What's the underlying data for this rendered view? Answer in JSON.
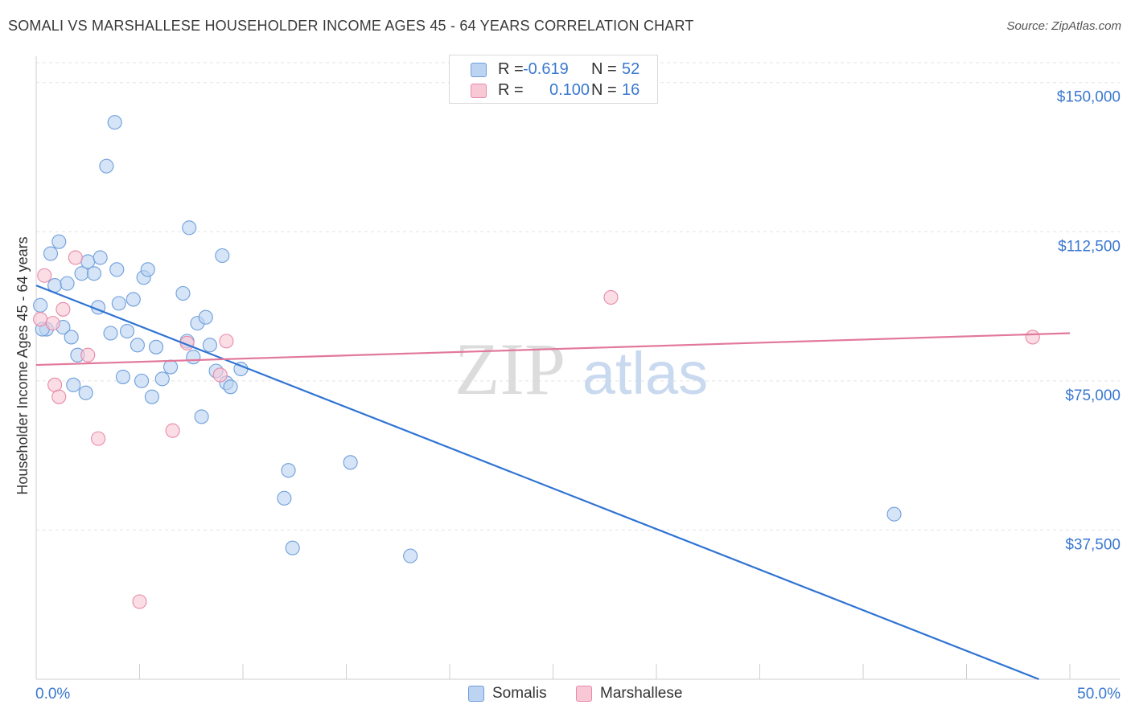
{
  "header": {
    "title": "SOMALI VS MARSHALLESE HOUSEHOLDER INCOME AGES 45 - 64 YEARS CORRELATION CHART",
    "source": "Source: ZipAtlas.com"
  },
  "legend_top": {
    "somalis": {
      "r_label": "R =",
      "r_value": "-0.619",
      "n_label": "N =",
      "n_value": "52"
    },
    "marshallese": {
      "r_label": "R =",
      "r_value": "0.100",
      "n_label": "N =",
      "n_value": "16"
    }
  },
  "legend_bottom": {
    "somalis": "Somalis",
    "marshallese": "Marshallese"
  },
  "watermark": {
    "part1": "ZIP",
    "part2": "atlas"
  },
  "colors": {
    "somalis_fill": "#bcd3f1",
    "somalis_stroke": "#6f9fdc",
    "somalis_line": "#2f74d3",
    "marshallese_fill": "#f8c8d6",
    "marshallese_stroke": "#e88aa8",
    "marshallese_line": "#e2789a",
    "axis_label": "#3a78d0",
    "grid": "#e3e3e3"
  },
  "chart_data": {
    "type": "scatter",
    "title": "SOMALI VS MARSHALLESE HOUSEHOLDER INCOME AGES 45 - 64 YEARS CORRELATION CHART",
    "xlabel": "",
    "ylabel": "Householder Income Ages 45 - 64 years",
    "xlim": [
      0,
      50
    ],
    "ylim": [
      0,
      155000
    ],
    "x_tick_labels": [
      "0.0%",
      "50.0%"
    ],
    "y_ticks": [
      37500,
      75000,
      112500,
      150000
    ],
    "y_tick_labels": [
      "$37,500",
      "$75,000",
      "$112,500",
      "$150,000"
    ],
    "series": [
      {
        "name": "Somalis",
        "r": -0.619,
        "n": 52,
        "trend": {
          "x": [
            0,
            48.5
          ],
          "y": [
            99000,
            0
          ]
        },
        "points": [
          [
            0.2,
            94000
          ],
          [
            0.5,
            88000
          ],
          [
            0.7,
            107000
          ],
          [
            0.9,
            99000
          ],
          [
            1.1,
            110000
          ],
          [
            1.3,
            88500
          ],
          [
            1.5,
            99500
          ],
          [
            1.7,
            86000
          ],
          [
            1.8,
            74000
          ],
          [
            2.0,
            81500
          ],
          [
            2.2,
            102000
          ],
          [
            2.4,
            72000
          ],
          [
            2.5,
            105000
          ],
          [
            2.8,
            102000
          ],
          [
            3.0,
            93500
          ],
          [
            3.1,
            106000
          ],
          [
            3.4,
            129000
          ],
          [
            3.6,
            87000
          ],
          [
            3.8,
            140000
          ],
          [
            3.9,
            103000
          ],
          [
            4.0,
            94500
          ],
          [
            4.2,
            76000
          ],
          [
            4.4,
            87500
          ],
          [
            4.7,
            95500
          ],
          [
            4.9,
            84000
          ],
          [
            5.1,
            75000
          ],
          [
            5.2,
            101000
          ],
          [
            5.4,
            103000
          ],
          [
            5.6,
            71000
          ],
          [
            5.8,
            83500
          ],
          [
            6.1,
            75500
          ],
          [
            6.5,
            78500
          ],
          [
            7.1,
            97000
          ],
          [
            7.3,
            85000
          ],
          [
            7.4,
            113500
          ],
          [
            7.6,
            81000
          ],
          [
            7.8,
            89500
          ],
          [
            8.0,
            66000
          ],
          [
            8.2,
            91000
          ],
          [
            8.4,
            84000
          ],
          [
            8.7,
            77500
          ],
          [
            9.0,
            106500
          ],
          [
            9.2,
            74500
          ],
          [
            9.4,
            73500
          ],
          [
            9.9,
            78000
          ],
          [
            12.0,
            45500
          ],
          [
            12.2,
            52500
          ],
          [
            12.4,
            33000
          ],
          [
            15.2,
            54500
          ],
          [
            18.1,
            31000
          ],
          [
            41.5,
            41500
          ],
          [
            0.3,
            88000
          ]
        ]
      },
      {
        "name": "Marshallese",
        "r": 0.1,
        "n": 16,
        "trend": {
          "x": [
            0,
            50
          ],
          "y": [
            79000,
            87000
          ]
        },
        "points": [
          [
            0.2,
            90500
          ],
          [
            0.4,
            101500
          ],
          [
            0.8,
            89500
          ],
          [
            0.9,
            74000
          ],
          [
            1.1,
            71000
          ],
          [
            1.3,
            93000
          ],
          [
            1.9,
            106000
          ],
          [
            2.5,
            81500
          ],
          [
            3.0,
            60500
          ],
          [
            5.0,
            19500
          ],
          [
            6.6,
            62500
          ],
          [
            7.3,
            84500
          ],
          [
            8.9,
            76500
          ],
          [
            9.2,
            85000
          ],
          [
            27.8,
            96000
          ],
          [
            48.2,
            86000
          ]
        ]
      }
    ]
  }
}
